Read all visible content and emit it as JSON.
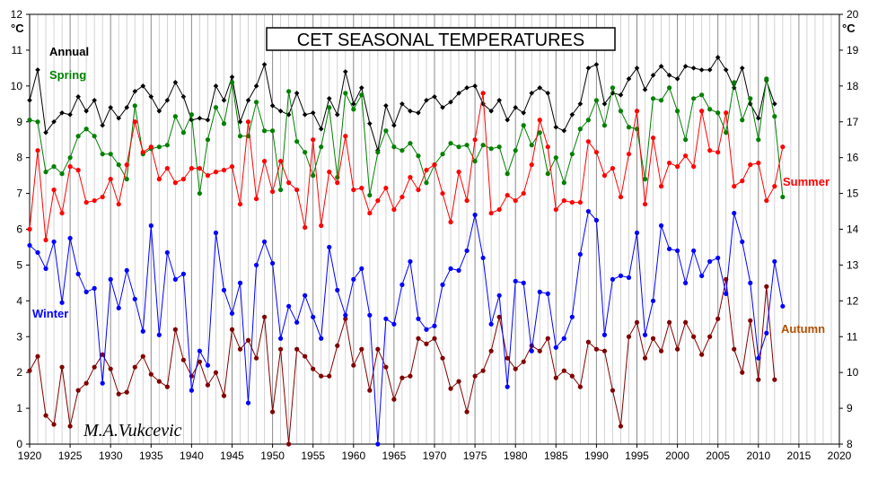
{
  "chart_data": {
    "type": "line",
    "title": "CET   SEASONAL TEMPERATURES",
    "signature": "M.A.Vukcevic",
    "left_axis_unit": "°C",
    "right_axis_unit": "°C",
    "xlim": [
      1920,
      2020
    ],
    "x_ticks": [
      1920,
      1925,
      1930,
      1935,
      1940,
      1945,
      1950,
      1955,
      1960,
      1965,
      1970,
      1975,
      1980,
      1985,
      1990,
      1995,
      2000,
      2005,
      2010,
      2015,
      2020
    ],
    "ylim_left": [
      0,
      12
    ],
    "y_ticks_left": [
      0,
      1,
      2,
      3,
      4,
      5,
      6,
      7,
      8,
      9,
      10,
      11,
      12
    ],
    "ylim_right": [
      8,
      20
    ],
    "y_ticks_right": [
      8,
      9,
      10,
      11,
      12,
      13,
      14,
      15,
      16,
      17,
      18,
      19,
      20
    ],
    "grid": "vertical lines every year, heavier every 5 years",
    "x_start_year": 1920,
    "series": [
      {
        "name": "Annual",
        "color": "#000000",
        "axis": "left",
        "marker": "diamond",
        "values": [
          9.6,
          10.45,
          8.7,
          9.0,
          9.25,
          9.2,
          9.7,
          9.3,
          9.6,
          8.9,
          9.4,
          9.1,
          9.4,
          9.85,
          10.0,
          9.7,
          9.3,
          9.6,
          10.1,
          9.7,
          9.05,
          9.1,
          9.05,
          10.0,
          9.6,
          10.25,
          9.0,
          9.6,
          10.0,
          10.6,
          9.45,
          9.3,
          9.2,
          9.8,
          9.2,
          9.25,
          8.8,
          9.65,
          9.2,
          10.4,
          9.5,
          9.95,
          8.95,
          8.2,
          9.45,
          8.9,
          9.5,
          9.3,
          9.25,
          9.6,
          9.7,
          9.4,
          9.55,
          9.8,
          9.95,
          10.0,
          9.5,
          9.3,
          9.6,
          9.05,
          9.4,
          9.25,
          9.8,
          9.95,
          9.8,
          8.85,
          8.75,
          9.2,
          9.5,
          10.5,
          10.6,
          9.5,
          9.8,
          9.75,
          10.2,
          10.5,
          9.9,
          10.3,
          10.55,
          10.3,
          10.2,
          10.55,
          10.5,
          10.45,
          10.45,
          10.8,
          10.45,
          9.95,
          10.5,
          9.5,
          9.1,
          10.15,
          9.5
        ]
      },
      {
        "name": "Spring",
        "color": "#008000",
        "axis": "left",
        "marker": "circle",
        "values": [
          9.05,
          9.0,
          7.6,
          7.75,
          7.55,
          8.0,
          8.6,
          8.8,
          8.6,
          8.1,
          8.1,
          7.8,
          7.4,
          9.45,
          8.1,
          8.25,
          8.3,
          8.35,
          9.15,
          8.7,
          9.2,
          7.0,
          8.5,
          9.4,
          8.95,
          10.1,
          8.6,
          8.6,
          9.55,
          8.75,
          8.75,
          7.1,
          9.85,
          8.45,
          8.15,
          7.5,
          8.3,
          9.4,
          7.45,
          9.8,
          9.35,
          9.75,
          6.95,
          8.15,
          8.75,
          8.3,
          8.2,
          8.4,
          8.05,
          7.3,
          7.8,
          8.1,
          8.4,
          8.3,
          8.35,
          7.9,
          8.35,
          8.25,
          8.3,
          7.55,
          8.2,
          8.9,
          8.35,
          8.7,
          7.55,
          8.0,
          7.3,
          8.1,
          8.8,
          9.05,
          9.6,
          8.9,
          9.95,
          9.3,
          8.85,
          8.8,
          7.4,
          9.65,
          9.6,
          9.95,
          9.3,
          8.5,
          9.65,
          9.75,
          9.35,
          9.25,
          8.7,
          10.1,
          9.05,
          9.65,
          8.5,
          10.2,
          9.15,
          6.9
        ]
      },
      {
        "name": "Summer",
        "color": "#ff0000",
        "axis": "right",
        "marker": "circle",
        "values": [
          14.0,
          16.2,
          13.7,
          15.1,
          14.45,
          15.75,
          15.65,
          14.75,
          14.8,
          14.9,
          15.4,
          14.7,
          15.8,
          17.0,
          16.15,
          16.3,
          15.4,
          15.7,
          15.3,
          15.4,
          15.7,
          15.7,
          15.5,
          15.6,
          15.65,
          15.75,
          14.7,
          17.0,
          14.85,
          15.9,
          15.05,
          15.9,
          15.3,
          15.1,
          14.05,
          16.5,
          14.1,
          15.6,
          15.3,
          16.6,
          15.1,
          15.15,
          14.45,
          14.8,
          15.15,
          14.55,
          14.9,
          15.45,
          15.1,
          15.65,
          15.8,
          15.0,
          14.2,
          15.6,
          14.8,
          16.5,
          17.8,
          14.45,
          14.55,
          14.95,
          14.8,
          15.0,
          15.8,
          17.05,
          16.3,
          14.55,
          14.8,
          14.75,
          14.75,
          16.45,
          16.15,
          15.5,
          15.7,
          14.9,
          16.1,
          17.3,
          14.7,
          16.55,
          15.2,
          15.85,
          15.75,
          16.05,
          15.75,
          17.3,
          16.2,
          16.15,
          17.25,
          15.2,
          15.35,
          15.8,
          15.85,
          14.8,
          15.2,
          16.3
        ]
      },
      {
        "name": "Autumn",
        "color": "#800000",
        "axis": "left",
        "marker": "circle",
        "values": [
          2.05,
          2.45,
          0.8,
          0.55,
          2.15,
          0.5,
          1.5,
          1.7,
          2.15,
          2.5,
          2.1,
          1.4,
          1.45,
          2.15,
          2.45,
          1.95,
          1.75,
          1.6,
          3.2,
          2.35,
          1.9,
          2.3,
          1.65,
          2.0,
          1.35,
          3.2,
          2.65,
          2.9,
          2.4,
          3.55,
          0.9,
          2.65,
          0.0,
          2.65,
          2.45,
          2.1,
          1.9,
          1.9,
          2.75,
          3.5,
          2.2,
          2.65,
          1.5,
          2.65,
          2.15,
          1.25,
          1.85,
          1.9,
          2.95,
          2.8,
          2.95,
          2.4,
          1.55,
          1.75,
          0.9,
          1.9,
          2.05,
          2.6,
          3.55,
          2.4,
          2.1,
          2.3,
          2.75,
          2.6,
          2.95,
          1.85,
          2.05,
          1.9,
          1.6,
          2.85,
          2.65,
          2.6,
          1.5,
          0.5,
          3.0,
          3.4,
          2.4,
          2.95,
          2.6,
          3.4,
          2.65,
          3.4,
          3.0,
          2.5,
          3.0,
          3.5,
          4.6,
          2.65,
          2.0,
          3.45,
          1.8,
          4.4,
          1.8
        ]
      },
      {
        "name": "Winter",
        "color": "#0000ff",
        "axis": "left",
        "marker": "circle",
        "values": [
          5.55,
          5.35,
          4.9,
          5.65,
          3.95,
          5.75,
          4.75,
          4.25,
          4.35,
          1.7,
          4.6,
          3.8,
          4.85,
          4.05,
          3.15,
          6.1,
          3.05,
          5.35,
          4.6,
          4.75,
          1.5,
          2.6,
          2.2,
          5.9,
          4.3,
          3.65,
          4.5,
          1.15,
          5.0,
          5.65,
          5.05,
          2.95,
          3.85,
          3.4,
          4.15,
          3.55,
          2.95,
          5.5,
          4.3,
          3.6,
          4.6,
          4.9,
          3.6,
          0.0,
          3.5,
          3.35,
          4.45,
          5.1,
          3.5,
          3.2,
          3.3,
          4.45,
          4.9,
          4.85,
          5.4,
          6.4,
          5.2,
          3.35,
          4.15,
          1.6,
          4.55,
          4.5,
          2.6,
          4.25,
          4.2,
          2.7,
          2.95,
          3.55,
          5.3,
          6.5,
          6.25,
          3.05,
          4.6,
          4.7,
          4.65,
          5.9,
          3.05,
          4.0,
          6.1,
          5.45,
          5.4,
          4.5,
          5.4,
          4.7,
          5.1,
          5.2,
          4.2,
          6.45,
          5.65,
          4.5,
          2.4,
          3.1,
          5.1,
          3.85
        ]
      }
    ],
    "series_labels": {
      "annual": "Annual",
      "spring": "Spring",
      "summer": "Summer",
      "autumn": "Autumn",
      "winter": "Winter"
    }
  }
}
